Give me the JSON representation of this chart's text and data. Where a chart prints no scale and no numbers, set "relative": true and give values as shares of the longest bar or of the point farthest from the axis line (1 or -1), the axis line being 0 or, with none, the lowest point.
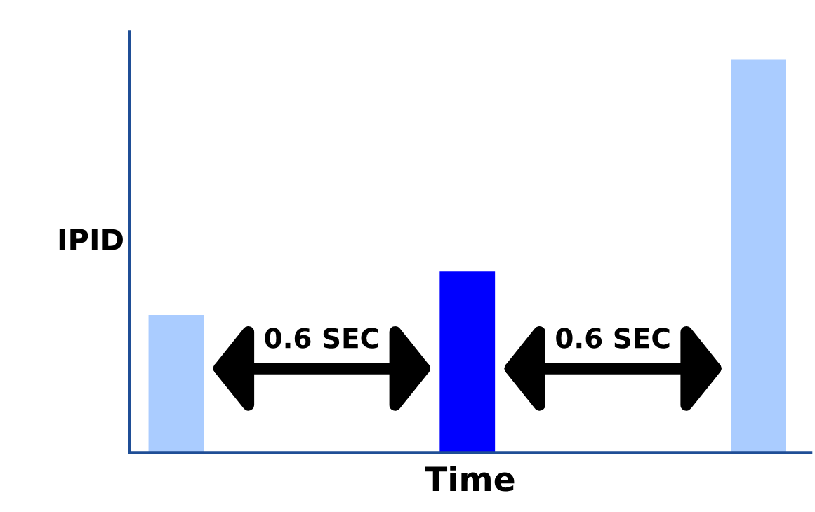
{
  "chart_data": {
    "type": "bar",
    "xlabel": "Time",
    "ylabel": "IPID",
    "relative": true,
    "categories": [
      null,
      null,
      null
    ],
    "values": [
      0.35,
      0.46,
      1
    ],
    "colors": [
      "#aaccff",
      "#0000ff",
      "#aaccff"
    ],
    "annotations": [
      "0.6 SEC",
      "0.6 SEC"
    ]
  }
}
